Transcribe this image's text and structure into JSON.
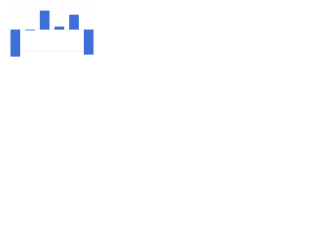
{
  "chart_data": {
    "type": "bar",
    "categories": [
      null,
      null,
      null,
      null,
      null,
      null
    ],
    "values": [
      -12.5,
      0,
      8.8,
      1.4,
      6.9,
      -11.6
    ],
    "color": "#3d6fd6",
    "ylim": [
      -15,
      10
    ],
    "yticks": [
      -10,
      0,
      10
    ],
    "grid": true
  }
}
